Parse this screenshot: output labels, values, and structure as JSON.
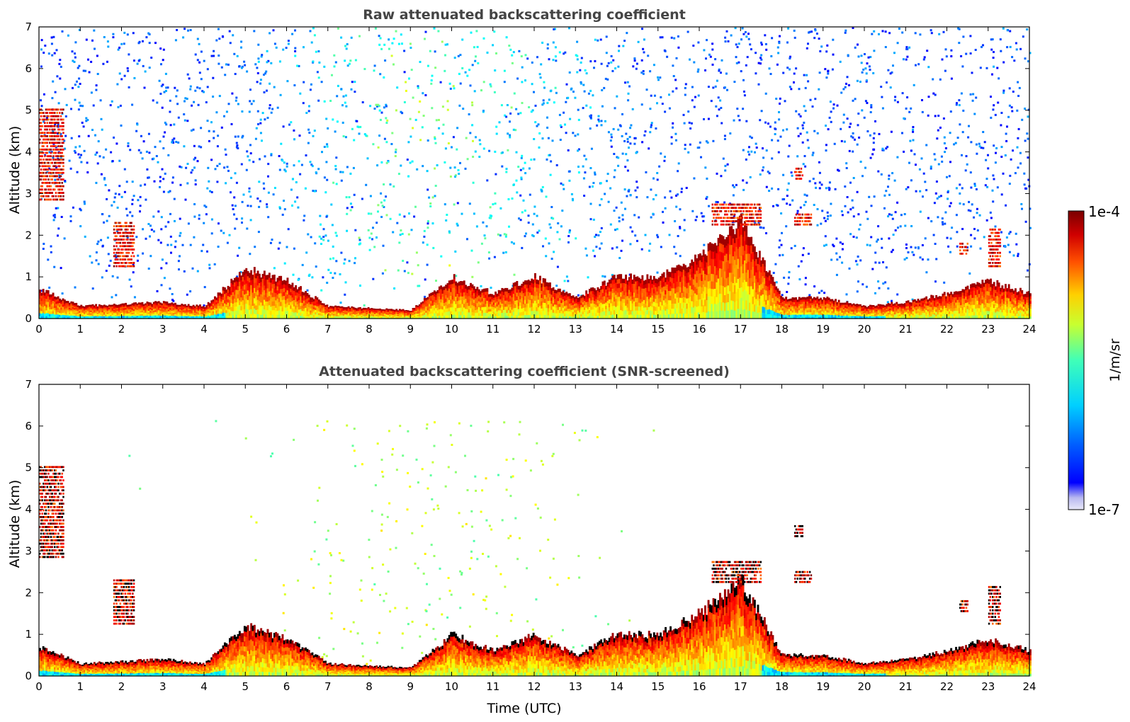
{
  "chart_data": [
    {
      "type": "heatmap",
      "title": "Raw attenuated backscattering coefficient",
      "xlabel": "",
      "ylabel": "Altitude (km)",
      "xlim": [
        0,
        24
      ],
      "ylim": [
        0,
        7
      ],
      "x_ticks": [
        "0",
        "1",
        "2",
        "3",
        "4",
        "5",
        "6",
        "7",
        "8",
        "9",
        "10",
        "11",
        "12",
        "13",
        "14",
        "15",
        "16",
        "17",
        "18",
        "19",
        "20",
        "21",
        "22",
        "23",
        "24"
      ],
      "y_ticks": [
        "0",
        "1",
        "2",
        "3",
        "4",
        "5",
        "6",
        "7"
      ],
      "screened": false,
      "features": {
        "boundary_layer_top_km": [
          [
            0,
            0.7
          ],
          [
            1,
            0.3
          ],
          [
            2,
            0.35
          ],
          [
            3,
            0.4
          ],
          [
            4,
            0.3
          ],
          [
            5,
            1.2
          ],
          [
            6,
            0.9
          ],
          [
            7,
            0.3
          ],
          [
            8,
            0.25
          ],
          [
            9,
            0.2
          ],
          [
            10,
            1.0
          ],
          [
            11,
            0.6
          ],
          [
            12,
            1.0
          ],
          [
            13,
            0.5
          ],
          [
            14,
            1.0
          ],
          [
            15,
            1.0
          ],
          [
            16,
            1.5
          ],
          [
            17,
            2.3
          ],
          [
            18,
            0.5
          ],
          [
            19,
            0.5
          ],
          [
            20,
            0.3
          ],
          [
            21,
            0.4
          ],
          [
            22,
            0.6
          ],
          [
            23,
            0.9
          ],
          [
            24,
            0.6
          ]
        ],
        "cloud_layers": [
          {
            "t_start": 0.0,
            "t_end": 0.6,
            "z_base_km": 2.8,
            "z_top_km": 5.0
          },
          {
            "t_start": 1.8,
            "t_end": 2.3,
            "z_base_km": 1.2,
            "z_top_km": 2.3
          },
          {
            "t_start": 16.3,
            "t_end": 17.5,
            "z_base_km": 2.2,
            "z_top_km": 2.7
          },
          {
            "t_start": 18.3,
            "t_end": 18.5,
            "z_base_km": 3.3,
            "z_top_km": 3.6
          },
          {
            "t_start": 18.3,
            "t_end": 18.7,
            "z_base_km": 2.2,
            "z_top_km": 2.5
          },
          {
            "t_start": 22.3,
            "t_end": 22.5,
            "z_base_km": 1.5,
            "z_top_km": 1.8
          },
          {
            "t_start": 23.0,
            "t_end": 23.3,
            "z_base_km": 1.2,
            "z_top_km": 2.1
          }
        ]
      }
    },
    {
      "type": "heatmap",
      "title": "Attenuated backscattering coefficient (SNR-screened)",
      "xlabel": "Time (UTC)",
      "ylabel": "Altitude (km)",
      "xlim": [
        0,
        24
      ],
      "ylim": [
        0,
        7
      ],
      "x_ticks": [
        "0",
        "1",
        "2",
        "3",
        "4",
        "5",
        "6",
        "7",
        "8",
        "9",
        "10",
        "11",
        "12",
        "13",
        "14",
        "15",
        "16",
        "17",
        "18",
        "19",
        "20",
        "21",
        "22",
        "23",
        "24"
      ],
      "y_ticks": [
        "0",
        "1",
        "2",
        "3",
        "4",
        "5",
        "6",
        "7"
      ],
      "screened": true
    }
  ],
  "colorbar": {
    "label": "1/m/sr",
    "max_label": "1e-4",
    "min_label": "1e-7",
    "scale": "log",
    "range": [
      1e-07,
      0.0001
    ],
    "colormap": "jet"
  }
}
